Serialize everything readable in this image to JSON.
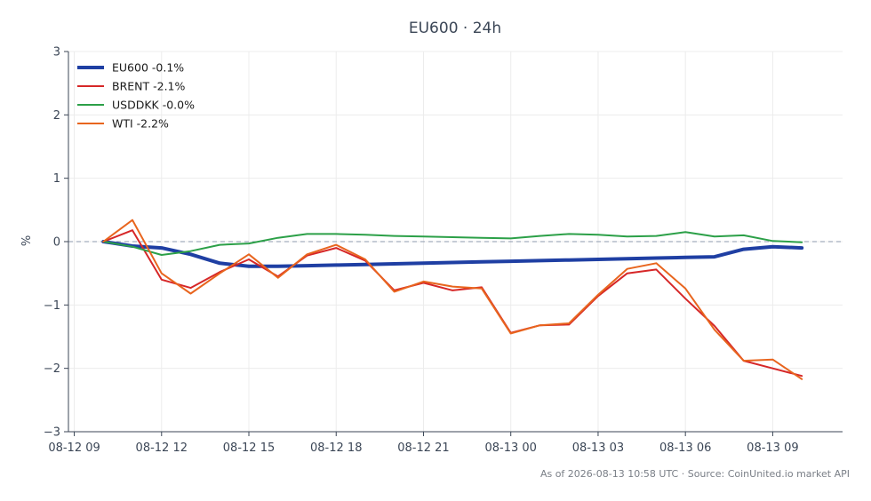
{
  "chart_data": {
    "type": "line",
    "title": "EU600 · 24h",
    "ylabel": "%",
    "xlabel": "",
    "ylim": [
      -3,
      3
    ],
    "yticks": [
      {
        "value": -3,
        "label": "−3"
      },
      {
        "value": -2,
        "label": "−2"
      },
      {
        "value": -1,
        "label": "−1"
      },
      {
        "value": 0,
        "label": "0"
      },
      {
        "value": 1,
        "label": "1"
      },
      {
        "value": 2,
        "label": "2"
      },
      {
        "value": 3,
        "label": "3"
      }
    ],
    "xlim": [
      -0.2,
      26.4
    ],
    "xticks": [
      {
        "value": 0,
        "label": "08-12 09"
      },
      {
        "value": 3,
        "label": "08-12 12"
      },
      {
        "value": 6,
        "label": "08-12 15"
      },
      {
        "value": 9,
        "label": "08-12 18"
      },
      {
        "value": 12,
        "label": "08-12 21"
      },
      {
        "value": 15,
        "label": "08-13 00"
      },
      {
        "value": 18,
        "label": "08-13 03"
      },
      {
        "value": 21,
        "label": "08-13 06"
      },
      {
        "value": 24,
        "label": "08-13 09"
      }
    ],
    "x_unit": "hours from 08-12 09:00",
    "x": [
      1,
      2,
      3,
      4,
      5,
      6,
      7,
      8,
      9,
      10,
      11,
      12,
      13,
      14,
      15,
      16,
      17,
      18,
      19,
      20,
      21,
      22,
      23,
      24,
      25
    ],
    "zero_line": true,
    "grid": true,
    "legend_position": "top-left",
    "series": [
      {
        "name": "EU600 -0.1%",
        "color": "#1f3fa3",
        "width": 4,
        "values": [
          0.0,
          -0.07,
          -0.1,
          -0.2,
          -0.34,
          -0.39,
          -0.39,
          -0.38,
          -0.37,
          -0.36,
          -0.35,
          -0.34,
          -0.33,
          -0.32,
          -0.31,
          -0.3,
          -0.29,
          -0.28,
          -0.27,
          -0.26,
          -0.25,
          -0.24,
          -0.12,
          -0.08,
          -0.1
        ]
      },
      {
        "name": "BRENT -2.1%",
        "color": "#d62728",
        "width": 2,
        "values": [
          0.0,
          0.18,
          -0.6,
          -0.73,
          -0.48,
          -0.28,
          -0.55,
          -0.22,
          -0.1,
          -0.3,
          -0.77,
          -0.65,
          -0.77,
          -0.72,
          -1.44,
          -1.32,
          -1.31,
          -0.86,
          -0.5,
          -0.44,
          -0.9,
          -1.33,
          -1.88,
          -2.0,
          -2.12
        ]
      },
      {
        "name": "USDDKK -0.0%",
        "color": "#2ca048",
        "width": 2,
        "values": [
          0.0,
          -0.08,
          -0.21,
          -0.15,
          -0.05,
          -0.03,
          0.06,
          0.12,
          0.12,
          0.11,
          0.09,
          0.08,
          0.07,
          0.06,
          0.05,
          0.09,
          0.12,
          0.11,
          0.08,
          0.09,
          0.15,
          0.08,
          0.1,
          0.01,
          -0.01
        ]
      },
      {
        "name": "WTI -2.2%",
        "color": "#e8651e",
        "width": 2,
        "values": [
          0.0,
          0.34,
          -0.5,
          -0.82,
          -0.5,
          -0.2,
          -0.57,
          -0.2,
          -0.05,
          -0.28,
          -0.79,
          -0.63,
          -0.71,
          -0.74,
          -1.45,
          -1.32,
          -1.29,
          -0.84,
          -0.43,
          -0.34,
          -0.74,
          -1.39,
          -1.88,
          -1.86,
          -2.17
        ]
      }
    ]
  },
  "footer": "As of 2026-08-13 10:58 UTC · Source: CoinUnited.io market API"
}
